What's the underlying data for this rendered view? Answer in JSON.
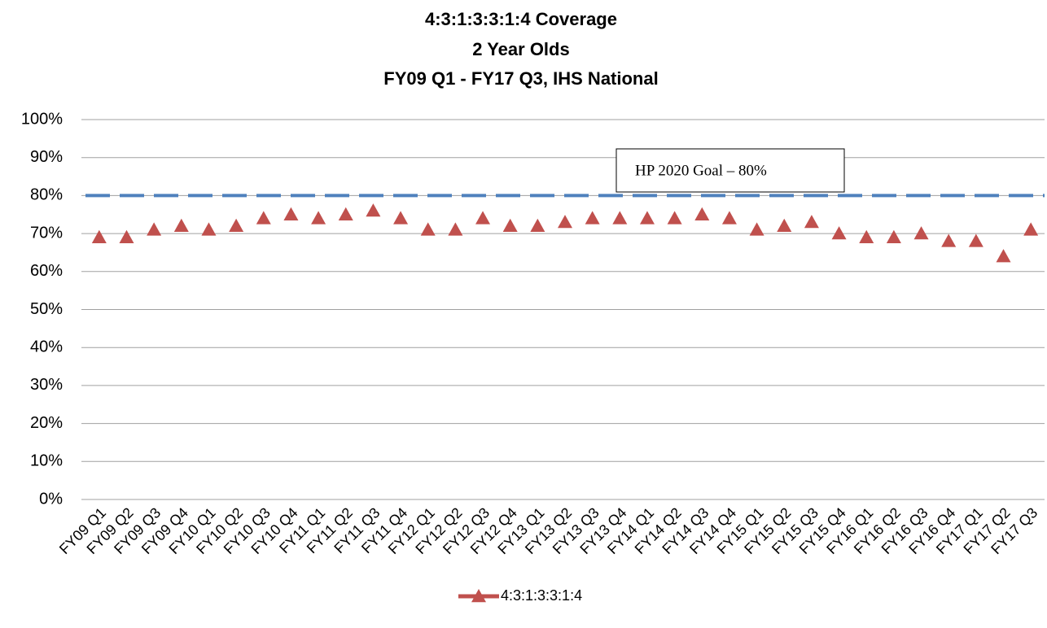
{
  "chart_data": {
    "type": "line",
    "title": [
      "4:3:1:3:3:1:4 Coverage",
      "2 Year Olds",
      "FY09 Q1 - FY17 Q3, IHS National"
    ],
    "categories": [
      "FY09 Q1",
      "FY09 Q2",
      "FY09 Q3",
      "FY09 Q4",
      "FY10 Q1",
      "FY10 Q2",
      "FY10 Q3",
      "FY10 Q4",
      "FY11 Q1",
      "FY11 Q2",
      "FY11 Q3",
      "FY11 Q4",
      "FY12 Q1",
      "FY12 Q2",
      "FY12 Q3",
      "FY12 Q4",
      "FY13 Q1",
      "FY13 Q2",
      "FY13 Q3",
      "FY13 Q4",
      "FY14 Q1",
      "FY14 Q2",
      "FY14 Q3",
      "FY14 Q4",
      "FY15 Q1",
      "FY15 Q2",
      "FY15 Q3",
      "FY15 Q4",
      "FY16 Q1",
      "FY16 Q2",
      "FY16 Q3",
      "FY16 Q4",
      "FY17 Q1",
      "FY17 Q2",
      "FY17 Q3"
    ],
    "series": [
      {
        "name": "4:3:1:3:3:1:4",
        "color": "#c0504d",
        "values": [
          69,
          69,
          71,
          72,
          71,
          72,
          74,
          75,
          74,
          75,
          76,
          74,
          71,
          71,
          74,
          72,
          72,
          73,
          74,
          74,
          74,
          74,
          75,
          74,
          71,
          72,
          73,
          70,
          69,
          69,
          70,
          68,
          68,
          64,
          71
        ]
      }
    ],
    "goal": 80,
    "goal_color": "#4f81bd",
    "annotation": "HP 2020 Goal – 80%",
    "ylim": [
      0,
      100
    ],
    "yticks": [
      {
        "value": 0,
        "label": "0%"
      },
      {
        "value": 10,
        "label": "10%"
      },
      {
        "value": 20,
        "label": "20%"
      },
      {
        "value": 30,
        "label": "30%"
      },
      {
        "value": 40,
        "label": "40%"
      },
      {
        "value": 50,
        "label": "50%"
      },
      {
        "value": 60,
        "label": "60%"
      },
      {
        "value": 70,
        "label": "70%"
      },
      {
        "value": 80,
        "label": "80%"
      },
      {
        "value": 90,
        "label": "90%"
      },
      {
        "value": 100,
        "label": "100%"
      }
    ],
    "grid": true,
    "legend": "bottom"
  }
}
